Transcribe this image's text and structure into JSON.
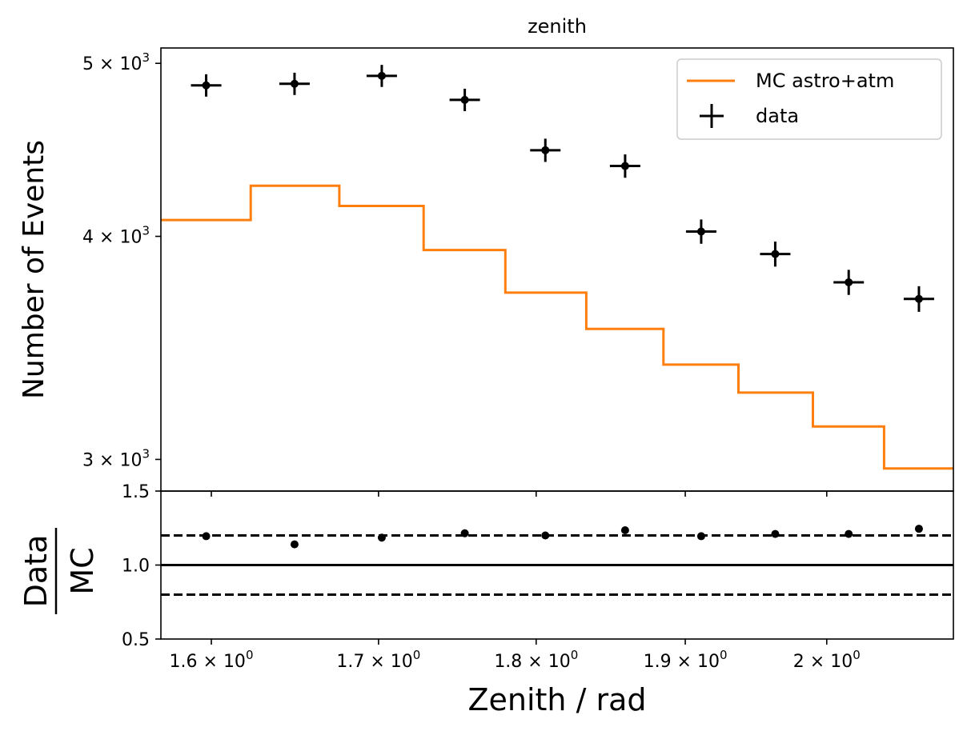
{
  "chart_data": {
    "type": "line",
    "title": "zenith",
    "xlabel": "Zenith / rad",
    "x_scale": "log",
    "xlim": [
      1.571,
      2.094
    ],
    "xticks": [
      1.6,
      1.7,
      1.8,
      1.9,
      2.0
    ],
    "xtick_labels": [
      {
        "base": "1.6 × 10",
        "exp": "0"
      },
      {
        "base": "1.7 × 10",
        "exp": "0"
      },
      {
        "base": "1.8 × 10",
        "exp": "0"
      },
      {
        "base": "1.9 × 10",
        "exp": "0"
      },
      {
        "base": "2 × 10",
        "exp": "0"
      }
    ],
    "main_panel": {
      "ylabel": "Number of Events",
      "y_scale": "log",
      "ylim": [
        2880,
        5100
      ],
      "yticks": [
        3000,
        4000,
        5000
      ],
      "ytick_labels": [
        {
          "base": "3 × 10",
          "exp": "3"
        },
        {
          "base": "4 × 10",
          "exp": "3"
        },
        {
          "base": "5 × 10",
          "exp": "3"
        }
      ],
      "legend": {
        "position": "upper right",
        "entries": [
          "MC astro+atm",
          "data"
        ]
      },
      "series": [
        {
          "name": "MC astro+atm",
          "kind": "step",
          "color": "#ff7f0e",
          "bin_edges": [
            1.571,
            1.623,
            1.676,
            1.728,
            1.78,
            1.833,
            1.885,
            1.937,
            1.99,
            2.042,
            2.094
          ],
          "values": [
            4085,
            4270,
            4160,
            3930,
            3720,
            3550,
            3390,
            3270,
            3130,
            2965
          ]
        },
        {
          "name": "data",
          "kind": "errorbar",
          "color": "#000000",
          "x": [
            1.597,
            1.649,
            1.702,
            1.754,
            1.806,
            1.859,
            1.911,
            1.963,
            2.016,
            2.068
          ],
          "y": [
            4860,
            4870,
            4920,
            4770,
            4470,
            4380,
            4025,
            3910,
            3770,
            3690
          ],
          "yerr": [
            70,
            70,
            70,
            69,
            67,
            66,
            63,
            63,
            61,
            61
          ]
        }
      ]
    },
    "ratio_panel": {
      "ylabel_numerator": "Data",
      "ylabel_denominator": "MC",
      "ylim": [
        0.5,
        1.5
      ],
      "yticks": [
        0.5,
        1.0,
        1.5
      ],
      "ytick_labels": [
        "0.5",
        "1.0",
        "1.5"
      ],
      "reference_line": 1.0,
      "dashed_lines": [
        0.8,
        1.2
      ],
      "series": [
        {
          "name": "Data/MC",
          "x": [
            1.597,
            1.649,
            1.702,
            1.754,
            1.806,
            1.859,
            1.911,
            1.963,
            2.016,
            2.068
          ],
          "y": [
            1.195,
            1.14,
            1.185,
            1.215,
            1.2,
            1.235,
            1.195,
            1.21,
            1.21,
            1.245
          ]
        }
      ]
    }
  }
}
